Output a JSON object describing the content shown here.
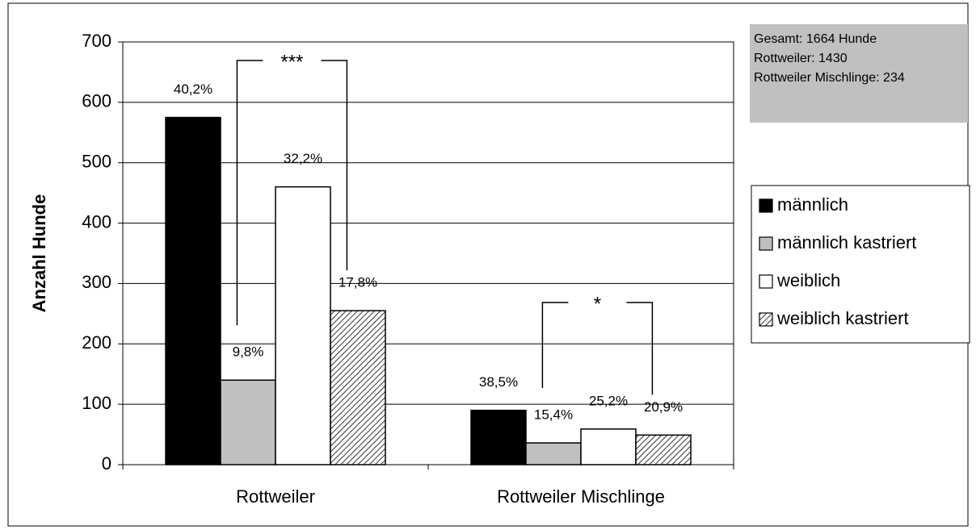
{
  "chart_data": {
    "type": "bar",
    "y_label": "Anzahl Hunde",
    "categories": [
      "Rottweiler",
      "Rottweiler Mischlinge"
    ],
    "series": [
      {
        "name": "männlich",
        "color": "#000000",
        "values": [
          575,
          90
        ],
        "shares": [
          "40,2%",
          "38,5%"
        ]
      },
      {
        "name": "männlich kastriert",
        "color": "#c0c0c0",
        "values": [
          140,
          36
        ],
        "shares": [
          "9,8%",
          "15,4%"
        ]
      },
      {
        "name": "weiblich",
        "color": "#ffffff",
        "values": [
          460,
          59
        ],
        "shares": [
          "32,2%",
          "25,2%"
        ]
      },
      {
        "name": "weiblich kastriert",
        "color": "#ffffff",
        "pattern": "hatch",
        "values": [
          255,
          49
        ],
        "shares": [
          "17,8%",
          "20,9%"
        ]
      }
    ],
    "significance": [
      "***",
      "*"
    ],
    "info_box": [
      "Gesamt: 1664 Hunde",
      "Rottweiler: 1430",
      "Rottweiler Mischlinge: 234"
    ],
    "ylim": [
      0,
      700
    ],
    "yticks": [
      0,
      100,
      200,
      300,
      400,
      500,
      600,
      700
    ],
    "grid": true,
    "legend": "right"
  }
}
